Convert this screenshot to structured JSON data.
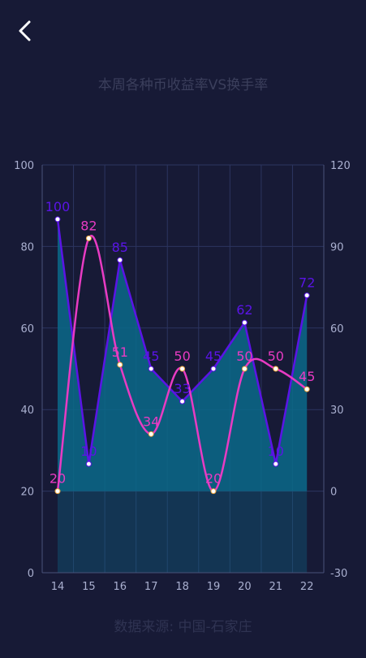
{
  "header": {
    "back_icon": "chevron-left-icon"
  },
  "title": "本周各种币收益率VS换手率",
  "source": "数据来源: 中国-石家庄",
  "colors": {
    "background": "#171a36",
    "series_a": "#5a14e6",
    "series_b": "#e83bc3",
    "area": "#0b6a8a"
  },
  "chart_data": {
    "type": "line",
    "categories": [
      "14",
      "15",
      "16",
      "17",
      "18",
      "19",
      "20",
      "21",
      "22"
    ],
    "left_axis": {
      "ticks": [
        "0",
        "20",
        "40",
        "60",
        "80",
        "100"
      ],
      "ylim": [
        0,
        100
      ]
    },
    "right_axis": {
      "ticks": [
        "-30",
        "0",
        "30",
        "60",
        "90",
        "120"
      ],
      "ylim": [
        -30,
        120
      ]
    },
    "grid": true,
    "series": [
      {
        "axis": "right",
        "style": "straight-line-with-area",
        "color": "#5a14e6",
        "values": [
          100,
          10,
          85,
          45,
          33,
          45,
          62,
          10,
          72
        ],
        "labels": [
          "100",
          "10",
          "85",
          "45",
          "33",
          "45",
          "62",
          "10",
          "72"
        ]
      },
      {
        "axis": "left",
        "style": "smooth-line",
        "color": "#e83bc3",
        "values": [
          20,
          82,
          51,
          34,
          50,
          20,
          50,
          50,
          45
        ],
        "labels": [
          "20",
          "82",
          "51",
          "34",
          "50",
          "20",
          "50",
          "50",
          "45"
        ]
      }
    ]
  }
}
